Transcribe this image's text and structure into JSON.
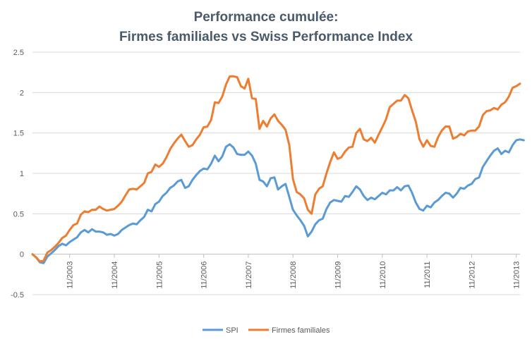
{
  "chart_data": {
    "type": "line",
    "title_lines": [
      "Performance cumulée:",
      "Firmes familiales vs Swiss Performance Index"
    ],
    "xlabel": "",
    "ylabel": "",
    "ylim": [
      -0.5,
      2.5
    ],
    "yticks": [
      -0.5,
      0,
      0.5,
      1,
      1.5,
      2,
      2.5
    ],
    "ytick_labels": [
      "-0.5",
      "0",
      "0.5",
      "1",
      "1.5",
      "2",
      "2.5"
    ],
    "xlim": [
      0,
      131
    ],
    "xticks": [
      10,
      22,
      34,
      46,
      58,
      70,
      82,
      94,
      106,
      118,
      130
    ],
    "xtick_labels": [
      "11/2003",
      "11/2004",
      "11/2005",
      "11/2006",
      "11/2007",
      "11/2008",
      "11/2009",
      "11/2010",
      "11/2011",
      "11/2012",
      "11/2013"
    ],
    "grid": "horizontal",
    "legend_position": "bottom",
    "series": [
      {
        "name": "SPI",
        "color": "#5b9bd5",
        "values": [
          0,
          -0.04,
          -0.1,
          -0.11,
          -0.03,
          0.01,
          0.05,
          0.1,
          0.13,
          0.11,
          0.15,
          0.18,
          0.21,
          0.27,
          0.3,
          0.27,
          0.31,
          0.28,
          0.28,
          0.27,
          0.24,
          0.25,
          0.23,
          0.25,
          0.3,
          0.33,
          0.36,
          0.38,
          0.37,
          0.42,
          0.46,
          0.55,
          0.53,
          0.62,
          0.65,
          0.72,
          0.76,
          0.82,
          0.85,
          0.9,
          0.92,
          0.82,
          0.84,
          0.92,
          0.98,
          1.03,
          1.06,
          1.05,
          1.12,
          1.22,
          1.15,
          1.21,
          1.33,
          1.36,
          1.32,
          1.24,
          1.23,
          1.23,
          1.27,
          1.22,
          1.12,
          0.92,
          0.9,
          0.84,
          0.94,
          0.95,
          0.8,
          0.84,
          0.87,
          0.71,
          0.55,
          0.48,
          0.42,
          0.35,
          0.22,
          0.28,
          0.37,
          0.42,
          0.44,
          0.56,
          0.64,
          0.67,
          0.66,
          0.65,
          0.72,
          0.71,
          0.77,
          0.84,
          0.8,
          0.72,
          0.67,
          0.7,
          0.68,
          0.72,
          0.76,
          0.74,
          0.79,
          0.79,
          0.83,
          0.79,
          0.84,
          0.85,
          0.76,
          0.64,
          0.56,
          0.54,
          0.6,
          0.58,
          0.64,
          0.67,
          0.72,
          0.76,
          0.75,
          0.7,
          0.75,
          0.82,
          0.81,
          0.85,
          0.87,
          0.93,
          0.95,
          1.08,
          1.15,
          1.22,
          1.28,
          1.31,
          1.24,
          1.28,
          1.26,
          1.35,
          1.41,
          1.42,
          1.41
        ]
      },
      {
        "name": "Firmes familiales",
        "color": "#ed7d31",
        "values": [
          0,
          -0.04,
          -0.09,
          -0.08,
          0.02,
          0.05,
          0.09,
          0.14,
          0.2,
          0.23,
          0.3,
          0.36,
          0.38,
          0.49,
          0.53,
          0.52,
          0.55,
          0.55,
          0.59,
          0.56,
          0.54,
          0.55,
          0.56,
          0.6,
          0.65,
          0.73,
          0.8,
          0.81,
          0.8,
          0.84,
          0.88,
          1.0,
          1.02,
          1.11,
          1.08,
          1.12,
          1.2,
          1.3,
          1.37,
          1.43,
          1.48,
          1.4,
          1.33,
          1.35,
          1.42,
          1.48,
          1.57,
          1.58,
          1.66,
          1.88,
          1.87,
          1.95,
          2.1,
          2.2,
          2.2,
          2.19,
          2.08,
          2.05,
          2.17,
          1.93,
          1.92,
          1.55,
          1.65,
          1.58,
          1.68,
          1.73,
          1.65,
          1.6,
          1.54,
          1.35,
          0.93,
          0.77,
          0.74,
          0.69,
          0.55,
          0.5,
          0.74,
          0.81,
          0.84,
          1.0,
          1.14,
          1.26,
          1.18,
          1.2,
          1.27,
          1.32,
          1.33,
          1.5,
          1.55,
          1.42,
          1.4,
          1.44,
          1.38,
          1.48,
          1.57,
          1.67,
          1.82,
          1.86,
          1.9,
          1.9,
          1.97,
          1.93,
          1.78,
          1.64,
          1.42,
          1.33,
          1.41,
          1.34,
          1.33,
          1.45,
          1.53,
          1.58,
          1.58,
          1.43,
          1.45,
          1.49,
          1.47,
          1.52,
          1.53,
          1.53,
          1.58,
          1.72,
          1.77,
          1.78,
          1.81,
          1.79,
          1.85,
          1.88,
          1.95,
          2.06,
          2.08,
          2.11
        ]
      }
    ]
  }
}
